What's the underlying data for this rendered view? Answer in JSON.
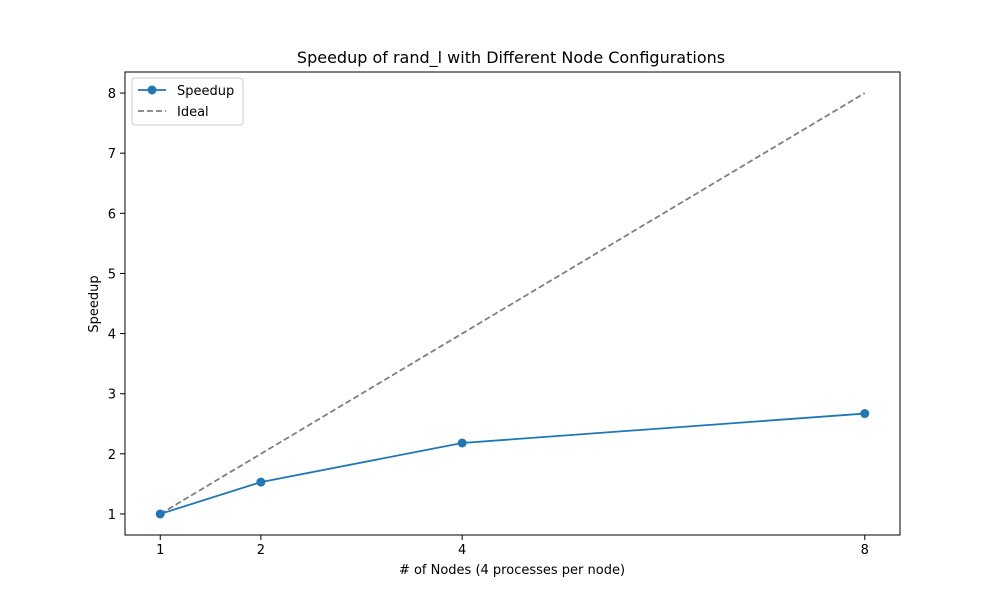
{
  "chart_data": {
    "type": "line",
    "title": "Speedup of rand_l with Different Node Configurations",
    "xlabel": "# of Nodes (4 processes per node)",
    "ylabel": "Speedup",
    "x": [
      1,
      2,
      4,
      8
    ],
    "xticks": [
      1,
      2,
      4,
      8
    ],
    "yticks": [
      1,
      2,
      3,
      4,
      5,
      6,
      7,
      8
    ],
    "xlim": [
      0.65,
      8.35
    ],
    "ylim": [
      0.65,
      8.35
    ],
    "grid": false,
    "legend_position": "top-left",
    "series": [
      {
        "name": "Speedup",
        "values": [
          1.0,
          1.53,
          2.18,
          2.67
        ],
        "color": "#1f77b4",
        "style": "solid",
        "marker": "circle"
      },
      {
        "name": "Ideal",
        "values": [
          1,
          2,
          4,
          8
        ],
        "color": "#808080",
        "style": "dashed",
        "marker": "none"
      }
    ]
  }
}
